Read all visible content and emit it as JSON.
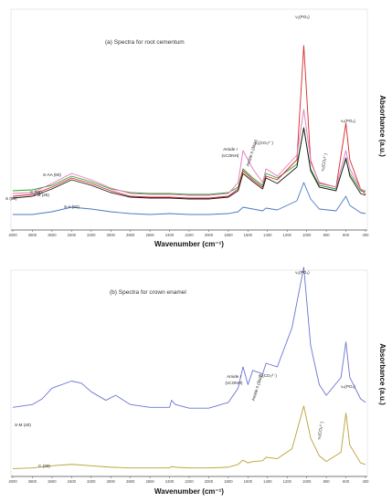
{
  "chart_data": [
    {
      "type": "line",
      "subtitle": "(a) Spectra for root cementum",
      "xlabel": "Wavenumber (cm⁻¹)",
      "ylabel": "Absorbance (a.u.)",
      "x_ticks": [
        4000,
        3800,
        3600,
        3400,
        3200,
        3000,
        2800,
        2600,
        2400,
        2200,
        2000,
        1800,
        1600,
        1400,
        1200,
        1000,
        800,
        600,
        400
      ],
      "xlim": [
        4000,
        400
      ],
      "x_reversed": true,
      "band_labels": [
        {
          "text": "ν₁(PO₄)",
          "x": 1030
        },
        {
          "text": "ν₄(PO₄)",
          "x": 600
        },
        {
          "text": "ν₂(CO₃²⁻)",
          "x": 872
        },
        {
          "text": "ν₃(CO₃²⁻)",
          "x": 1415
        },
        {
          "text": "Amide II (δNH)",
          "x": 1550
        },
        {
          "text": "Amide I",
          "x": 1650
        },
        {
          "text": "(νCONH)",
          "x": 1650
        }
      ],
      "series": [
        {
          "name": "S (59)",
          "color": "#2ca02c",
          "x": [
            4000,
            3800,
            3600,
            3400,
            3200,
            3000,
            2800,
            2600,
            2400,
            2200,
            2000,
            1800,
            1700,
            1650,
            1550,
            1450,
            1415,
            1300,
            1100,
            1030,
            960,
            872,
            700,
            600,
            560,
            450,
            400
          ],
          "y": [
            0.36,
            0.37,
            0.42,
            0.52,
            0.46,
            0.38,
            0.34,
            0.33,
            0.33,
            0.32,
            0.32,
            0.34,
            0.4,
            0.6,
            0.5,
            0.42,
            0.55,
            0.5,
            0.65,
            1.05,
            0.6,
            0.42,
            0.38,
            0.7,
            0.55,
            0.36,
            0.35
          ]
        },
        {
          "name": "C (56)",
          "color": "#d62728",
          "x": [
            4000,
            3800,
            3600,
            3400,
            3200,
            3000,
            2800,
            2600,
            2400,
            2200,
            2000,
            1800,
            1700,
            1650,
            1550,
            1450,
            1415,
            1300,
            1100,
            1030,
            960,
            872,
            700,
            600,
            560,
            450,
            400
          ],
          "y": [
            0.3,
            0.32,
            0.4,
            0.5,
            0.44,
            0.36,
            0.3,
            0.29,
            0.29,
            0.28,
            0.28,
            0.3,
            0.38,
            0.58,
            0.48,
            0.4,
            0.52,
            0.48,
            0.7,
            1.95,
            0.68,
            0.45,
            0.4,
            1.1,
            0.7,
            0.38,
            0.32
          ]
        },
        {
          "name": "S-AA (60)",
          "color": "#e377c2",
          "x": [
            4000,
            3800,
            3600,
            3400,
            3200,
            3000,
            2800,
            2600,
            2400,
            2200,
            2000,
            1800,
            1700,
            1650,
            1550,
            1450,
            1415,
            1300,
            1100,
            1030,
            960,
            872,
            700,
            600,
            560,
            450,
            400
          ],
          "y": [
            0.33,
            0.34,
            0.44,
            0.55,
            0.48,
            0.39,
            0.33,
            0.32,
            0.32,
            0.31,
            0.31,
            0.33,
            0.45,
            0.8,
            0.6,
            0.45,
            0.6,
            0.52,
            0.75,
            1.25,
            0.7,
            0.44,
            0.4,
            0.8,
            0.6,
            0.38,
            0.36
          ]
        },
        {
          "name": "S-M (25)",
          "color": "#1a1a1a",
          "x": [
            4000,
            3800,
            3600,
            3400,
            3200,
            3000,
            2800,
            2600,
            2400,
            2200,
            2000,
            1800,
            1700,
            1650,
            1550,
            1450,
            1415,
            1300,
            1100,
            1030,
            960,
            872,
            700,
            600,
            560,
            450,
            400
          ],
          "y": [
            0.28,
            0.3,
            0.38,
            0.48,
            0.42,
            0.34,
            0.29,
            0.28,
            0.28,
            0.27,
            0.27,
            0.29,
            0.36,
            0.55,
            0.46,
            0.38,
            0.5,
            0.44,
            0.62,
            1.05,
            0.58,
            0.4,
            0.36,
            0.72,
            0.52,
            0.33,
            0.31
          ]
        },
        {
          "name": "S-A (62)",
          "color": "#4a77c4",
          "x": [
            4000,
            3800,
            3600,
            3400,
            3200,
            3000,
            2800,
            2600,
            2400,
            2200,
            2000,
            1800,
            1700,
            1650,
            1550,
            1450,
            1415,
            1300,
            1100,
            1030,
            960,
            872,
            700,
            600,
            560,
            450,
            400
          ],
          "y": [
            0.1,
            0.1,
            0.13,
            0.18,
            0.16,
            0.13,
            0.11,
            0.1,
            0.11,
            0.1,
            0.1,
            0.11,
            0.13,
            0.18,
            0.16,
            0.14,
            0.17,
            0.15,
            0.25,
            0.45,
            0.27,
            0.16,
            0.14,
            0.3,
            0.2,
            0.12,
            0.11
          ]
        }
      ]
    },
    {
      "type": "line",
      "subtitle": "(b) Spectra for crown enamel",
      "xlabel": "Wavenumber (cm⁻¹)",
      "ylabel": "Absorbance (a.u.)",
      "x_ticks": [
        4000,
        3800,
        3600,
        3400,
        3200,
        3000,
        2800,
        2600,
        2400,
        2200,
        2000,
        1800,
        1600,
        1400,
        1200,
        1000,
        800,
        600,
        400
      ],
      "xlim": [
        4000,
        400
      ],
      "x_reversed": true,
      "band_labels": [
        {
          "text": "ν₁(PO₄)",
          "x": 1030
        },
        {
          "text": "ν₄(PO₄)",
          "x": 600
        },
        {
          "text": "ν₂(CO₃²⁻)",
          "x": 872
        },
        {
          "text": "ν₃(CO₃²⁻)",
          "x": 1415
        },
        {
          "text": "Amide II (δNH)",
          "x": 1550
        },
        {
          "text": "Amide I",
          "x": 1650
        },
        {
          "text": "(νCONH)",
          "x": 1650
        }
      ],
      "series": [
        {
          "name": "S-M (40)",
          "color": "#6b73d1",
          "x": [
            4000,
            3800,
            3700,
            3600,
            3400,
            3300,
            3200,
            3050,
            2950,
            2800,
            2600,
            2400,
            2380,
            2340,
            2200,
            2000,
            1800,
            1700,
            1650,
            1600,
            1550,
            1450,
            1415,
            1300,
            1150,
            1030,
            960,
            872,
            800,
            650,
            600,
            560,
            450,
            400
          ],
          "y": [
            0.88,
            0.92,
            1.0,
            1.15,
            1.25,
            1.22,
            1.1,
            0.98,
            1.05,
            0.92,
            0.88,
            0.88,
            0.98,
            0.92,
            0.87,
            0.87,
            0.95,
            1.15,
            1.45,
            1.2,
            1.4,
            1.35,
            1.5,
            1.45,
            2.0,
            2.85,
            1.75,
            1.2,
            1.05,
            1.3,
            1.8,
            1.3,
            1.0,
            0.95
          ]
        },
        {
          "name": "C (33)",
          "color": "#b9a133",
          "x": [
            4000,
            3800,
            3600,
            3400,
            3200,
            3000,
            2800,
            2600,
            2400,
            2380,
            2340,
            2200,
            2000,
            1800,
            1700,
            1650,
            1600,
            1550,
            1450,
            1415,
            1300,
            1150,
            1030,
            960,
            872,
            800,
            650,
            600,
            560,
            450,
            400
          ],
          "y": [
            0.02,
            0.03,
            0.06,
            0.08,
            0.06,
            0.04,
            0.03,
            0.03,
            0.03,
            0.05,
            0.04,
            0.03,
            0.03,
            0.04,
            0.08,
            0.14,
            0.1,
            0.12,
            0.13,
            0.18,
            0.16,
            0.3,
            0.9,
            0.45,
            0.2,
            0.12,
            0.25,
            0.8,
            0.35,
            0.1,
            0.08
          ]
        }
      ]
    }
  ]
}
